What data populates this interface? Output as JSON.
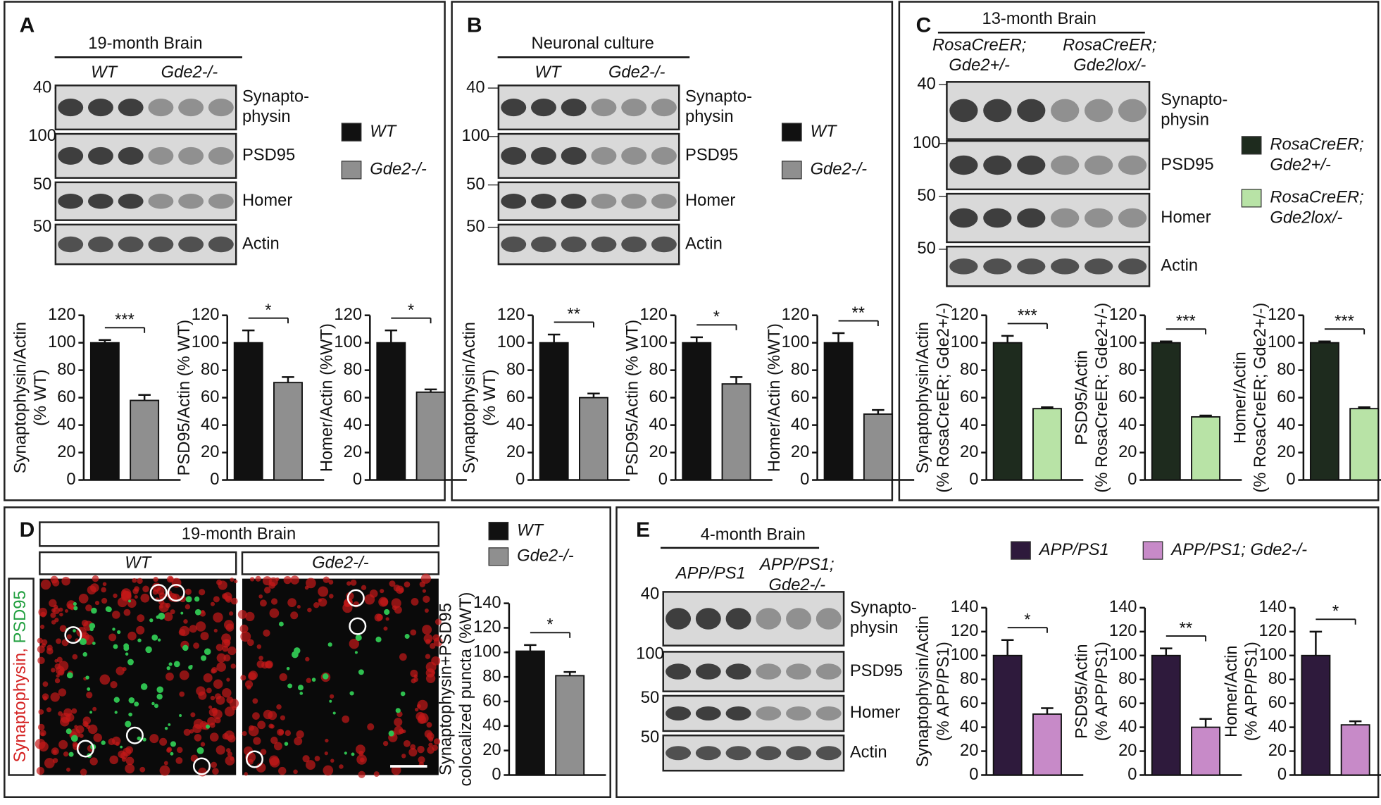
{
  "panels": [
    {
      "label": "A",
      "header": "19-month Brain",
      "genotypes": [
        [
          "WT"
        ],
        [
          "Gde2-/-"
        ]
      ],
      "markers": [
        40,
        100,
        50,
        50
      ],
      "bands": [
        [
          "Synapto-",
          "physin"
        ],
        [
          "PSD95"
        ],
        [
          "Homer"
        ],
        [
          "Actin"
        ]
      ],
      "legend": [
        {
          "name": [
            "WT"
          ],
          "color": "#111111"
        },
        {
          "name": [
            "Gde2-/-"
          ],
          "color": "#8f8f8f"
        }
      ],
      "charts": [
        {
          "type": "bar",
          "ylabel": [
            "Synaptophysin/Actin",
            "(% WT)"
          ],
          "ylim": [
            0,
            120
          ],
          "yticks": [
            0,
            20,
            40,
            60,
            80,
            100,
            120
          ],
          "values": [
            100,
            58
          ],
          "errors": [
            2,
            4
          ],
          "significance": "***"
        },
        {
          "type": "bar",
          "ylabel": [
            "PSD95/Actin (% WT)"
          ],
          "ylim": [
            0,
            120
          ],
          "yticks": [
            0,
            20,
            40,
            60,
            80,
            100,
            120
          ],
          "values": [
            100,
            71
          ],
          "errors": [
            9,
            4
          ],
          "significance": "*"
        },
        {
          "type": "bar",
          "ylabel": [
            "Homer/Actin (%WT)"
          ],
          "ylim": [
            0,
            120
          ],
          "yticks": [
            0,
            20,
            40,
            60,
            80,
            100,
            120
          ],
          "values": [
            100,
            64
          ],
          "errors": [
            9,
            2
          ],
          "significance": "*"
        }
      ]
    },
    {
      "label": "B",
      "header": "Neuronal culture",
      "genotypes": [
        [
          "WT"
        ],
        [
          "Gde2-/-"
        ]
      ],
      "markers": [
        40,
        100,
        50,
        50
      ],
      "bands": [
        [
          "Synapto-",
          "physin"
        ],
        [
          "PSD95"
        ],
        [
          "Homer"
        ],
        [
          "Actin"
        ]
      ],
      "legend": [
        {
          "name": [
            "WT"
          ],
          "color": "#111111"
        },
        {
          "name": [
            "Gde2-/-"
          ],
          "color": "#8f8f8f"
        }
      ],
      "charts": [
        {
          "type": "bar",
          "ylabel": [
            "Synaptophysin/Actin",
            "(% WT)"
          ],
          "ylim": [
            0,
            120
          ],
          "yticks": [
            0,
            20,
            40,
            60,
            80,
            100,
            120
          ],
          "values": [
            100,
            60
          ],
          "errors": [
            6,
            3
          ],
          "significance": "**"
        },
        {
          "type": "bar",
          "ylabel": [
            "PSD95/Actin (% WT)"
          ],
          "ylim": [
            0,
            120
          ],
          "yticks": [
            0,
            20,
            40,
            60,
            80,
            100,
            120
          ],
          "values": [
            100,
            70
          ],
          "errors": [
            4,
            5
          ],
          "significance": "*"
        },
        {
          "type": "bar",
          "ylabel": [
            "Homer/Actin (%WT)"
          ],
          "ylim": [
            0,
            120
          ],
          "yticks": [
            0,
            20,
            40,
            60,
            80,
            100,
            120
          ],
          "values": [
            100,
            48
          ],
          "errors": [
            7,
            3
          ],
          "significance": "**"
        }
      ]
    },
    {
      "label": "C",
      "header": "13-month Brain",
      "genotypes": [
        [
          "RosaCreER;",
          "Gde2+/-"
        ],
        [
          "RosaCreER;",
          "Gde2lox/-"
        ]
      ],
      "markers": [
        40,
        100,
        50,
        50
      ],
      "bands": [
        [
          "Synapto-",
          "physin"
        ],
        [
          "PSD95"
        ],
        [
          "Homer"
        ],
        [
          "Actin"
        ]
      ],
      "legend": [
        {
          "name": [
            "RosaCreER;",
            "Gde2+/-"
          ],
          "color": "#1e2b1e"
        },
        {
          "name": [
            "RosaCreER;",
            "Gde2lox/-"
          ],
          "color": "#b8e3a6"
        }
      ],
      "charts": [
        {
          "type": "bar",
          "ylabel": [
            "Synaptophysin/Actin",
            "(% RosaCreER; Gde2+/-)"
          ],
          "ylim": [
            0,
            120
          ],
          "yticks": [
            0,
            20,
            40,
            60,
            80,
            100,
            120
          ],
          "values": [
            100,
            52
          ],
          "errors": [
            5,
            1
          ],
          "significance": "***"
        },
        {
          "type": "bar",
          "ylabel": [
            "PSD95/Actin",
            "(% RosaCreER; Gde2+/-)"
          ],
          "ylim": [
            0,
            120
          ],
          "yticks": [
            0,
            20,
            40,
            60,
            80,
            100,
            120
          ],
          "values": [
            100,
            46
          ],
          "errors": [
            1,
            1
          ],
          "significance": "***"
        },
        {
          "type": "bar",
          "ylabel": [
            "Homer/Actin",
            "(% RosaCreER; Gde2+/-)"
          ],
          "ylim": [
            0,
            120
          ],
          "yticks": [
            0,
            20,
            40,
            60,
            80,
            100,
            120
          ],
          "values": [
            100,
            52
          ],
          "errors": [
            1,
            1
          ],
          "significance": "***"
        }
      ]
    },
    {
      "label": "D",
      "header": "19-month Brain",
      "genotypes": [
        [
          "WT"
        ],
        [
          "Gde2-/-"
        ]
      ],
      "channels": [
        {
          "name": "Synaptophysin,",
          "color": "#d42020"
        },
        {
          "name": "PSD95",
          "color": "#22a040"
        }
      ],
      "legend": [
        {
          "name": [
            "WT"
          ],
          "color": "#111111"
        },
        {
          "name": [
            "Gde2-/-"
          ],
          "color": "#8f8f8f"
        }
      ],
      "charts": [
        {
          "type": "bar",
          "ylabel": [
            "Synaptophysin+PSD95",
            "colocalized puncta (%WT)"
          ],
          "ylim": [
            0,
            140
          ],
          "yticks": [
            0,
            20,
            40,
            60,
            80,
            100,
            120,
            140
          ],
          "values": [
            101,
            81
          ],
          "errors": [
            5,
            3
          ],
          "significance": "*"
        }
      ]
    },
    {
      "label": "E",
      "header": "4-month Brain",
      "genotypes": [
        [
          "APP/PS1"
        ],
        [
          "APP/PS1;",
          "Gde2-/-"
        ]
      ],
      "markers": [
        40,
        100,
        50,
        50
      ],
      "bands": [
        [
          "Synapto-",
          "physin"
        ],
        [
          "PSD95"
        ],
        [
          "Homer"
        ],
        [
          "Actin"
        ]
      ],
      "legend": [
        {
          "name": [
            "APP/PS1"
          ],
          "color": "#2e1a3c"
        },
        {
          "name": [
            "APP/PS1; Gde2-/-"
          ],
          "color": "#c78ac8"
        }
      ],
      "charts": [
        {
          "type": "bar",
          "ylabel": [
            "Synaptophysin/Actin",
            "(% APP/PS1)"
          ],
          "ylim": [
            0,
            140
          ],
          "yticks": [
            0,
            20,
            40,
            60,
            80,
            100,
            120,
            140
          ],
          "values": [
            100,
            51
          ],
          "errors": [
            13,
            5
          ],
          "significance": "*"
        },
        {
          "type": "bar",
          "ylabel": [
            "PSD95/Actin",
            "(% APP/PS1)"
          ],
          "ylim": [
            0,
            140
          ],
          "yticks": [
            0,
            20,
            40,
            60,
            80,
            100,
            120,
            140
          ],
          "values": [
            100,
            40
          ],
          "errors": [
            6,
            7
          ],
          "significance": "**"
        },
        {
          "type": "bar",
          "ylabel": [
            "Homer/Actin",
            "(% APP/PS1)"
          ],
          "ylim": [
            0,
            140
          ],
          "yticks": [
            0,
            20,
            40,
            60,
            80,
            100,
            120,
            140
          ],
          "values": [
            100,
            42
          ],
          "errors": [
            20,
            3
          ],
          "significance": "*"
        }
      ]
    }
  ]
}
